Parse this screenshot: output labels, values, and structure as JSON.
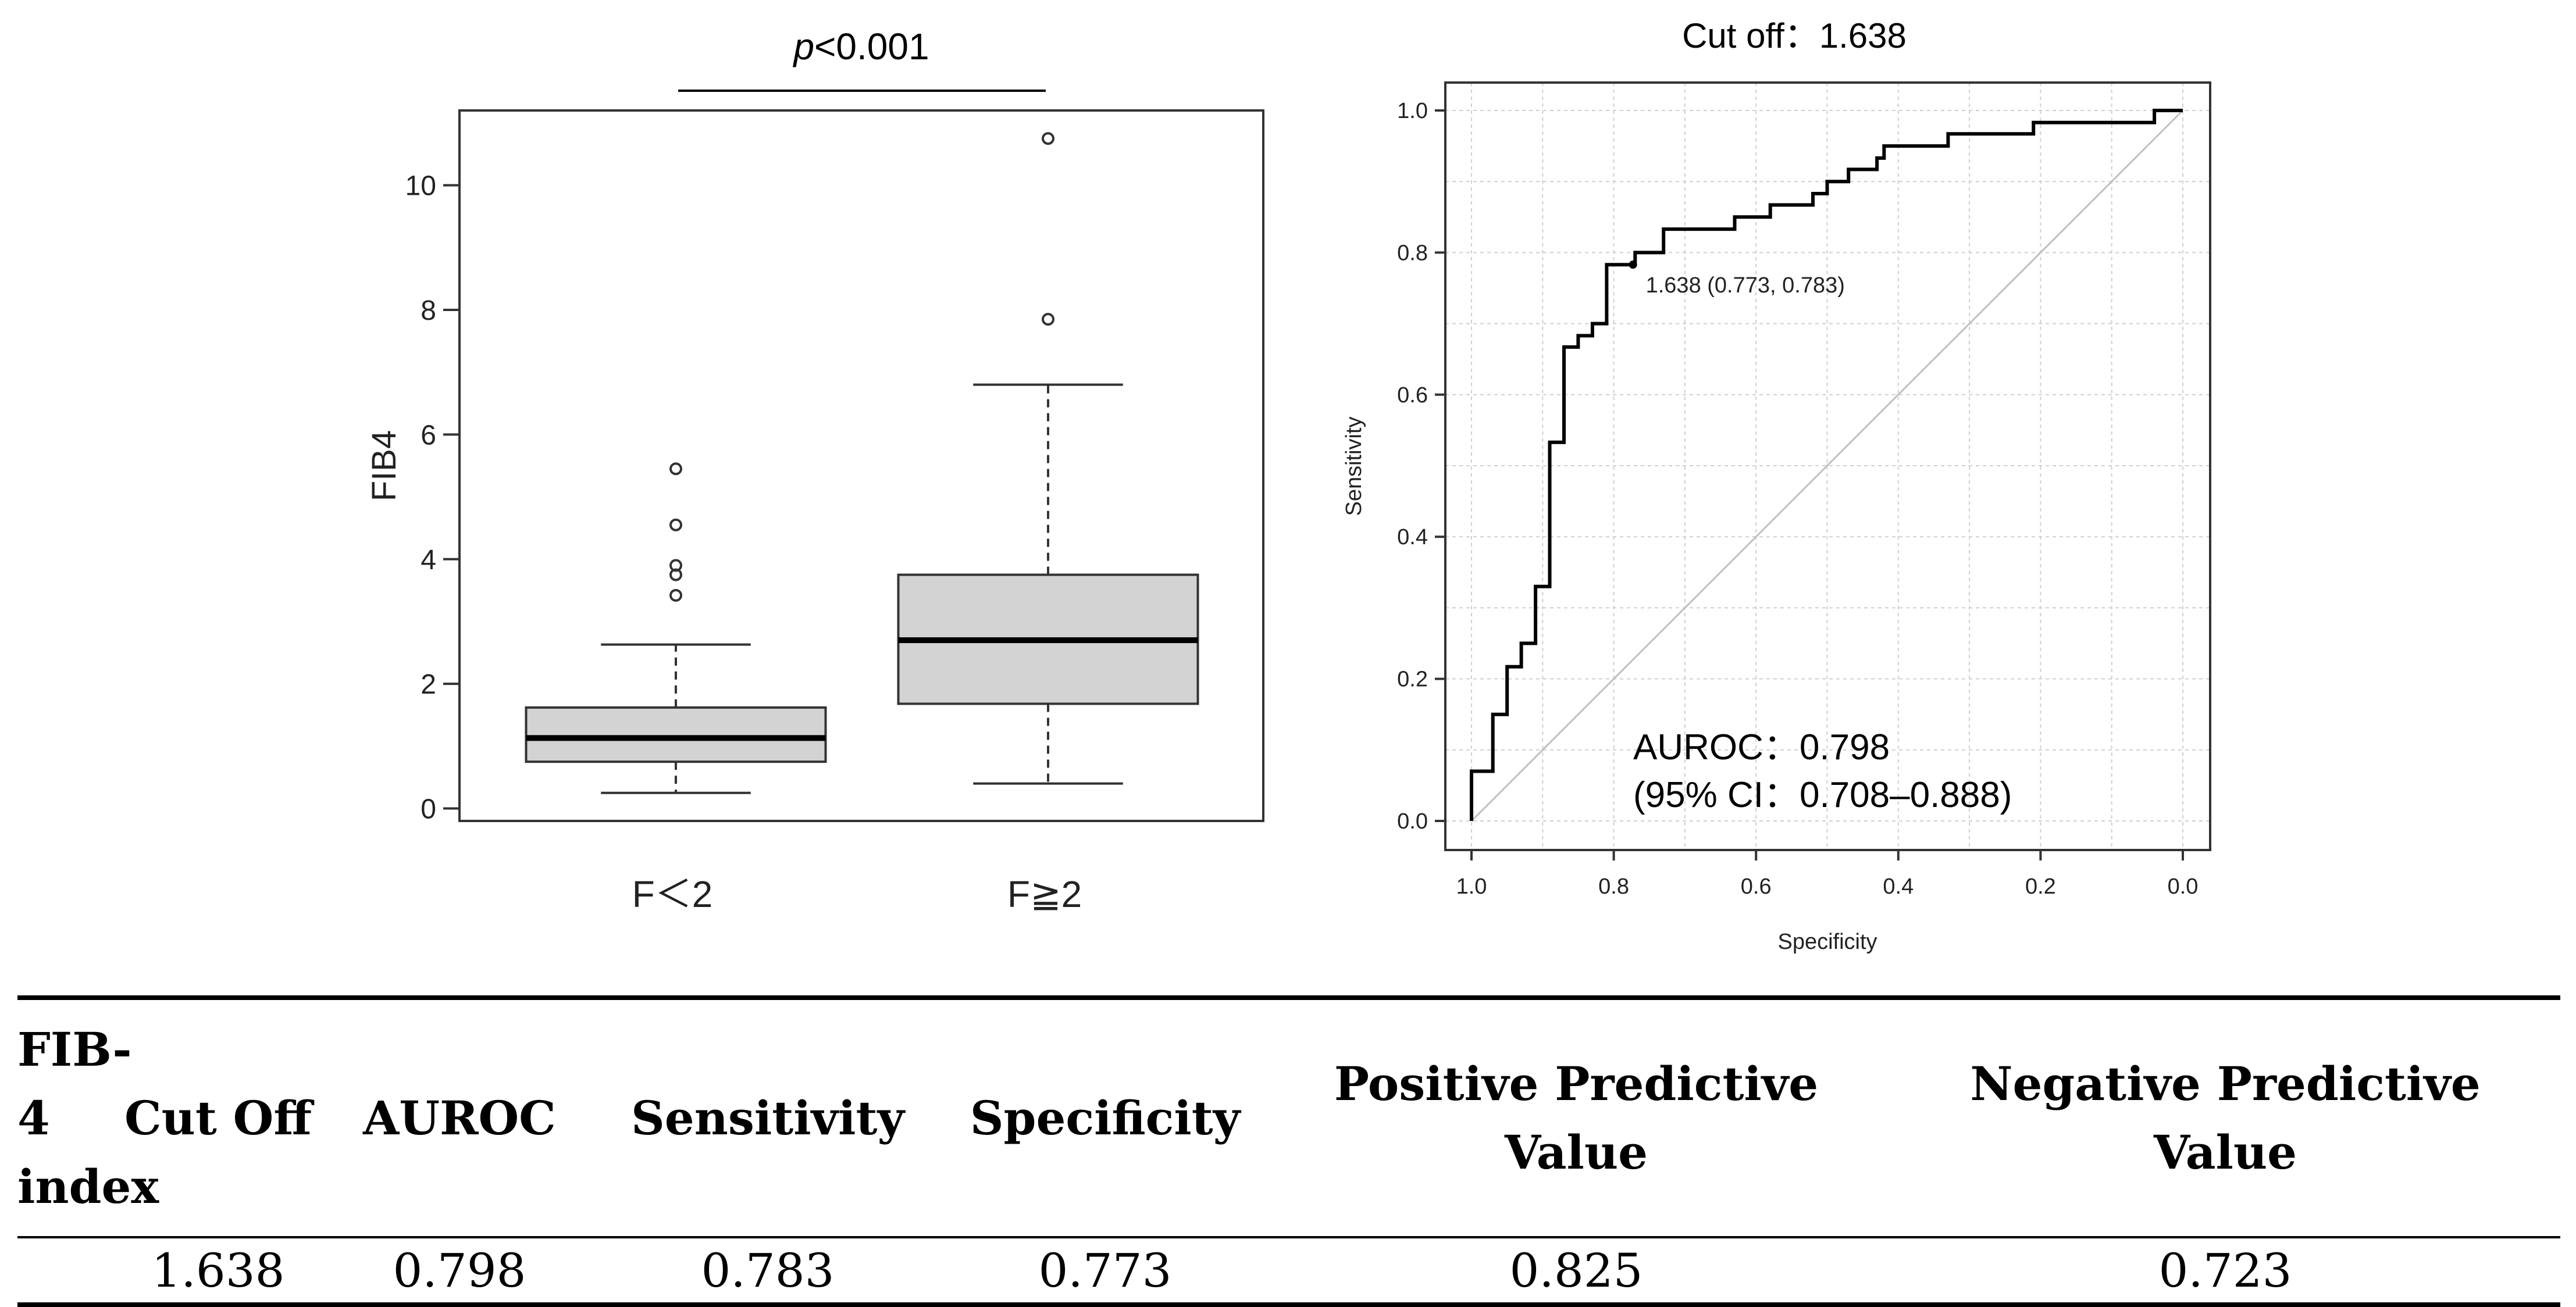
{
  "chart_data": [
    {
      "type": "box",
      "title": "",
      "annotation": {
        "prefix": "p",
        "text": "<0.001"
      },
      "ylabel": "FIB4",
      "xlabel": "",
      "ylim": [
        -0.2,
        11.2
      ],
      "yticks": [
        0,
        2,
        4,
        6,
        8,
        10
      ],
      "ytick_labels": [
        "0",
        "2",
        "4",
        "6",
        "8",
        "10"
      ],
      "categories": [
        "F＜2",
        "F≧2"
      ],
      "boxes": [
        {
          "name": "F＜2",
          "whisker_low": 0.25,
          "q1": 0.75,
          "median": 1.13,
          "q3": 1.62,
          "whisker_high": 2.63,
          "outliers": [
            3.42,
            3.75,
            3.9,
            4.55,
            5.45
          ]
        },
        {
          "name": "F≧2",
          "whisker_low": 0.4,
          "q1": 1.68,
          "median": 2.7,
          "q3": 3.75,
          "whisker_high": 6.8,
          "outliers": [
            7.85,
            10.75
          ]
        }
      ],
      "colors": {
        "box_fill": "#d3d3d3",
        "line": "#000000",
        "outlier": "#333333"
      }
    },
    {
      "type": "line",
      "title": "Cut off：1.638",
      "xlabel": "Specificity",
      "ylabel": "Sensitivity",
      "xlim": [
        1.0,
        0.0
      ],
      "ylim": [
        0.0,
        1.0
      ],
      "xticks": [
        1.0,
        0.8,
        0.6,
        0.4,
        0.2,
        0.0
      ],
      "xtick_labels": [
        "1.0",
        "0.8",
        "0.6",
        "0.4",
        "0.2",
        "0.0"
      ],
      "yticks": [
        0.0,
        0.2,
        0.4,
        0.6,
        0.8,
        1.0
      ],
      "ytick_labels": [
        "0.0",
        "0.2",
        "0.4",
        "0.6",
        "0.8",
        "1.0"
      ],
      "grid": true,
      "series": [
        {
          "name": "ROC",
          "x": [
            1.0,
            1.0,
            0.97,
            0.97,
            0.95,
            0.95,
            0.93,
            0.93,
            0.91,
            0.91,
            0.89,
            0.89,
            0.87,
            0.87,
            0.85,
            0.85,
            0.83,
            0.83,
            0.81,
            0.81,
            0.77,
            0.77,
            0.73,
            0.73,
            0.63,
            0.63,
            0.58,
            0.58,
            0.52,
            0.52,
            0.5,
            0.5,
            0.47,
            0.47,
            0.43,
            0.43,
            0.42,
            0.42,
            0.33,
            0.33,
            0.28,
            0.28,
            0.21,
            0.21,
            0.18,
            0.18,
            0.04,
            0.04,
            0.0
          ],
          "y": [
            0.0,
            0.07,
            0.07,
            0.15,
            0.15,
            0.217,
            0.217,
            0.25,
            0.25,
            0.33,
            0.33,
            0.533,
            0.533,
            0.667,
            0.667,
            0.683,
            0.683,
            0.7,
            0.7,
            0.783,
            0.783,
            0.8,
            0.8,
            0.833,
            0.833,
            0.85,
            0.85,
            0.867,
            0.867,
            0.883,
            0.883,
            0.9,
            0.9,
            0.917,
            0.917,
            0.933,
            0.933,
            0.95,
            0.95,
            0.967,
            0.967,
            0.967,
            0.967,
            0.983,
            0.983,
            0.983,
            0.983,
            1.0,
            1.0
          ]
        },
        {
          "name": "chance",
          "x": [
            1.0,
            0.0
          ],
          "y": [
            0.0,
            1.0
          ]
        }
      ],
      "cutoff_point": {
        "x": 0.773,
        "y": 0.783,
        "label": "1.638 (0.773, 0.783)"
      },
      "annotations": [
        "AUROC：0.798",
        "(95% CI：0.708–0.888)"
      ],
      "colors": {
        "roc": "#000000",
        "diagonal": "#c0c0c0",
        "grid": "#d0d0d0"
      }
    }
  ],
  "table": {
    "headers": [
      [
        "FIB-4",
        "index"
      ],
      [
        "Cut Off"
      ],
      [
        "AUROC"
      ],
      [
        "Sensitivity"
      ],
      [
        "Specificity"
      ],
      [
        "Positive Predictive",
        "Value"
      ],
      [
        "Negative Predictive",
        "Value"
      ]
    ],
    "row": [
      "",
      "1.638",
      "0.798",
      "0.783",
      "0.773",
      "0.825",
      "0.723"
    ]
  }
}
